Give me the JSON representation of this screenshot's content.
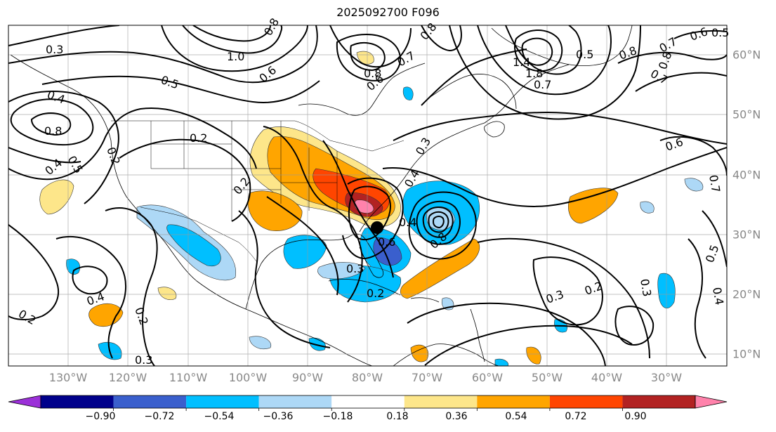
{
  "title": "2025092700 F096",
  "lon_labels": [
    "130°W",
    "120°W",
    "110°W",
    "100°W",
    "90°W",
    "80°W",
    "70°W",
    "60°W",
    "50°W",
    "40°W",
    "30°W"
  ],
  "lat_labels": [
    "60°N",
    "50°N",
    "40°N",
    "30°N",
    "20°N",
    "10°N"
  ],
  "colorbar": {
    "ticks": [
      "−0.90",
      "−0.72",
      "−0.54",
      "−0.36",
      "−0.18",
      "0.18",
      "0.36",
      "0.54",
      "0.72",
      "0.90"
    ],
    "colors": [
      "#9b30d8",
      "#00008b",
      "#3a5fcd",
      "#00bfff",
      "#add8f6",
      "#ffffff",
      "#fde68a",
      "#ffa500",
      "#ff4500",
      "#b22222",
      "#ff82ab"
    ]
  },
  "contour_labels": [
    "0.3",
    "1.0",
    "0.8",
    "0.5",
    "0.6",
    "0.2",
    "0.8",
    "0.8",
    "0.4",
    "0.5",
    "0.2",
    "0.4",
    "0.7",
    "0.6",
    "0.8",
    "1.4",
    "1.8",
    "0.7",
    "0.8",
    "0.7",
    "0.5",
    "0.8",
    "0.7",
    "0.6",
    "0.5",
    "0.6",
    "0.7",
    "0.3",
    "0.2",
    "0.4",
    "0.4",
    "0.6",
    "0.3",
    "0.2",
    "0.4",
    "0.2",
    "0.3",
    "0.2",
    "0.3",
    "0.8",
    "0.3",
    "0.2",
    "0.5",
    "0.4"
  ]
}
